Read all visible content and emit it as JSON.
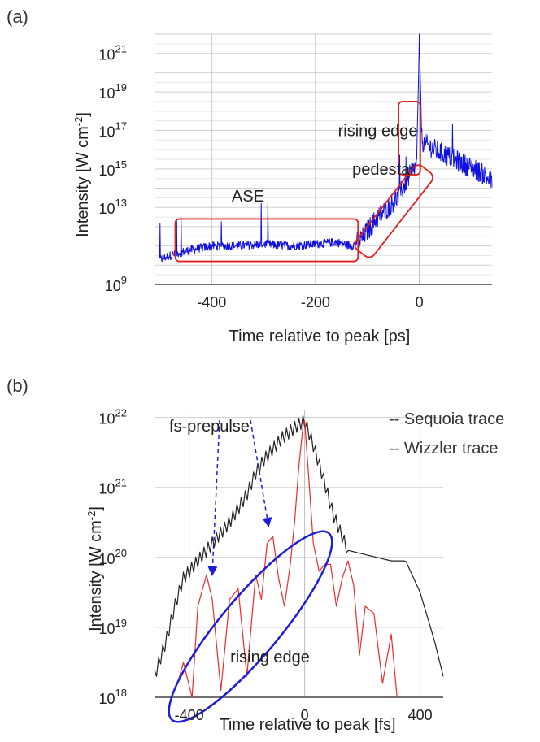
{
  "chart_data": [
    {
      "panel_label": "(a)",
      "type": "line",
      "xlabel": "Time relative to peak [ps]",
      "ylabel_parts": {
        "main": "Intensity [W cm",
        "sup": "-2",
        "end": "]"
      },
      "xlim": [
        -510,
        140
      ],
      "ylim_log10": [
        9,
        22
      ],
      "y_scale": "log",
      "grid": true,
      "x_ticks": [
        {
          "value": -400,
          "label": "-400"
        },
        {
          "value": -200,
          "label": "-200"
        },
        {
          "value": 0,
          "label": "0"
        }
      ],
      "y_ticks": [
        {
          "exp": 9,
          "base": "10",
          "sup": "9"
        },
        {
          "exp": 13,
          "base": "10",
          "sup": "13"
        },
        {
          "exp": 15,
          "base": "10",
          "sup": "15"
        },
        {
          "exp": 17,
          "base": "10",
          "sup": "17"
        },
        {
          "exp": 19,
          "base": "10",
          "sup": "19"
        },
        {
          "exp": 21,
          "base": "10",
          "sup": "21"
        }
      ],
      "series": [
        {
          "color": "#1010e0",
          "x": [
            -500,
            -470,
            -440,
            -400,
            -350,
            -300,
            -250,
            -200,
            -160,
            -130,
            -110,
            -100,
            -80,
            -60,
            -40,
            -20,
            -5,
            0,
            5,
            10,
            30,
            60,
            90,
            120,
            140
          ],
          "log10_y": [
            10.3,
            10.6,
            10.8,
            11.0,
            11.0,
            11.1,
            11.0,
            11.1,
            11.2,
            11.0,
            11.4,
            11.8,
            12.5,
            13.0,
            13.6,
            14.6,
            15.2,
            21.8,
            16.5,
            16.3,
            16.0,
            15.6,
            15.2,
            14.8,
            14.3
          ]
        }
      ],
      "annotations": [
        {
          "text": "ASE",
          "x": -330,
          "log10_y": 13.3
        },
        {
          "text": "pedestal",
          "x": -70,
          "log10_y": 14.7
        },
        {
          "text": "rising  edge",
          "x": -80,
          "log10_y": 16.7
        }
      ],
      "regions": [
        {
          "name": "ASE",
          "x": [
            -470,
            -118
          ],
          "log10_y": [
            10.2,
            12.4
          ]
        },
        {
          "name": "rising edge",
          "x": [
            -40,
            2
          ],
          "log10_y": [
            14.7,
            18.5
          ]
        }
      ]
    },
    {
      "panel_label": "(b)",
      "type": "line",
      "xlabel": "Time relative to peak [fs]",
      "ylabel_parts": {
        "main": "Intensity [W cm",
        "sup": "-2",
        "end": "]"
      },
      "xlim": [
        -520,
        480
      ],
      "ylim_log10": [
        18,
        22.1
      ],
      "y_scale": "log",
      "grid": true,
      "legend_position": "top-right",
      "x_ticks": [
        {
          "value": -400,
          "label": "-400"
        },
        {
          "value": 0,
          "label": "0"
        },
        {
          "value": 400,
          "label": "400"
        }
      ],
      "y_ticks": [
        {
          "exp": 18,
          "base": "10",
          "sup": "18"
        },
        {
          "exp": 19,
          "base": "10",
          "sup": "19"
        },
        {
          "exp": 20,
          "base": "10",
          "sup": "20"
        },
        {
          "exp": 21,
          "base": "10",
          "sup": "21"
        },
        {
          "exp": 22,
          "base": "10",
          "sup": "22"
        }
      ],
      "series": [
        {
          "name": "-- Sequoia trace",
          "color": "#222222",
          "x": [
            -520,
            -480,
            -450,
            -420,
            -400,
            -370,
            -340,
            -300,
            -260,
            -230,
            -200,
            -170,
            -140,
            -110,
            -80,
            -50,
            -20,
            0,
            30,
            60,
            100,
            150,
            200,
            250,
            300,
            350,
            400,
            450,
            480
          ],
          "log10_y": [
            18.3,
            18.8,
            19.3,
            19.7,
            19.8,
            19.95,
            20.1,
            20.3,
            20.5,
            20.7,
            20.9,
            21.2,
            21.4,
            21.55,
            21.7,
            21.8,
            21.9,
            21.95,
            21.6,
            21.2,
            20.6,
            20.1,
            20.05,
            20.0,
            19.95,
            19.95,
            19.5,
            18.8,
            18.3
          ]
        },
        {
          "name": "-- Wizzler trace",
          "color": "#ee2a2a",
          "x": [
            -440,
            -420,
            -390,
            -370,
            -340,
            -320,
            -290,
            -260,
            -230,
            -200,
            -170,
            -150,
            -130,
            -110,
            -90,
            -70,
            -50,
            -35,
            -20,
            -5,
            0,
            15,
            30,
            50,
            70,
            90,
            110,
            130,
            150,
            170,
            190,
            210,
            240,
            270,
            300,
            320
          ],
          "log10_y": [
            18.2,
            18.5,
            18.0,
            19.3,
            19.75,
            19.4,
            18.1,
            19.4,
            19.55,
            18.3,
            19.75,
            19.4,
            20.2,
            20.3,
            19.7,
            19.3,
            19.9,
            20.5,
            21.3,
            21.9,
            21.95,
            21.1,
            20.2,
            19.8,
            19.9,
            19.9,
            19.3,
            19.7,
            19.95,
            19.6,
            18.6,
            19.3,
            19.2,
            18.2,
            18.9,
            18.0
          ]
        }
      ],
      "annotations": [
        {
          "text": "fs-prepulse",
          "x": -330,
          "log10_y": 21.8
        },
        {
          "text": "rising  edge",
          "x": -120,
          "log10_y": 18.5
        }
      ]
    }
  ]
}
